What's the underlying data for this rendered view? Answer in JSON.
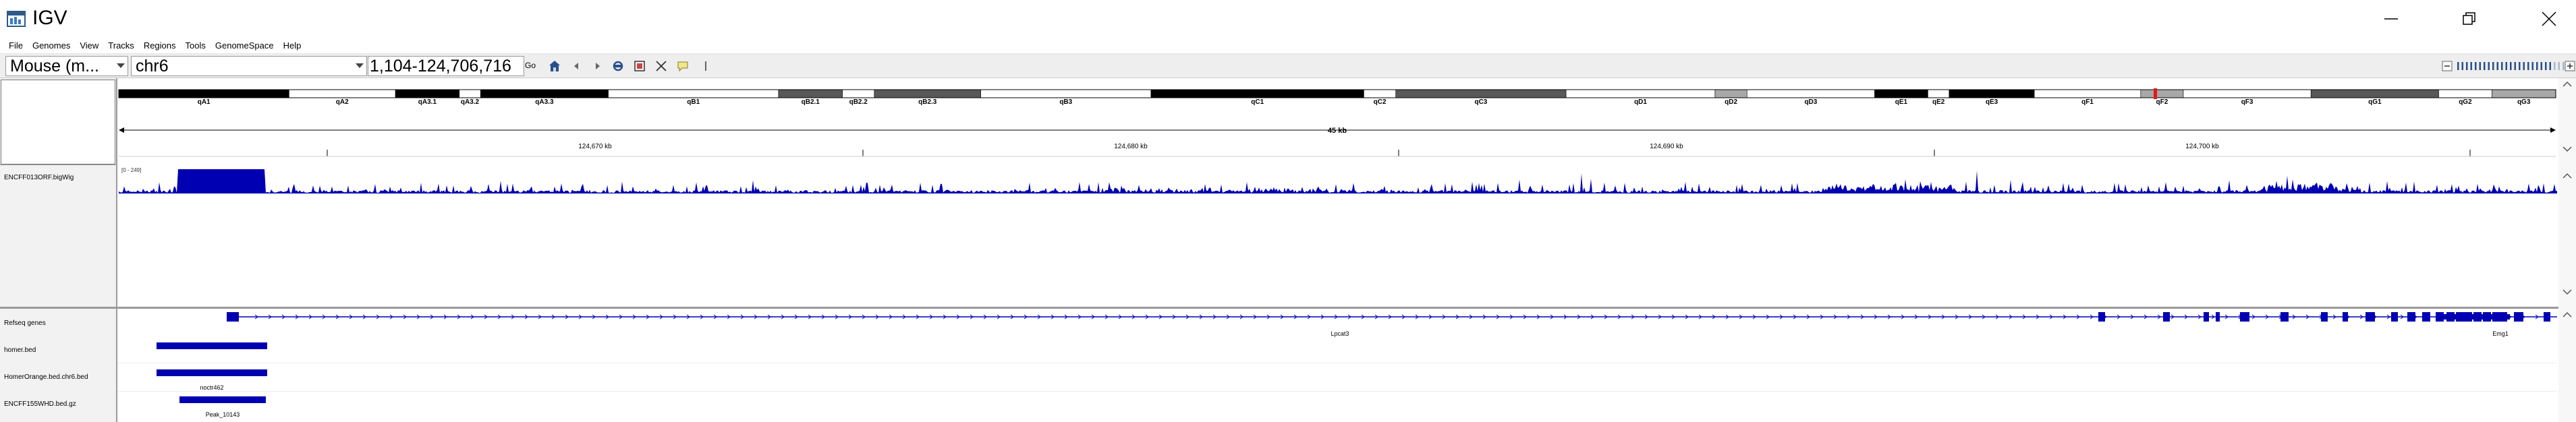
{
  "window": {
    "title": "IGV",
    "colors": {
      "accent": "#0000b2",
      "centromere": "#e21818"
    }
  },
  "menu": [
    "File",
    "Genomes",
    "View",
    "Tracks",
    "Regions",
    "Tools",
    "GenomeSpace",
    "Help"
  ],
  "toolbar": {
    "genome": "Mouse (m...",
    "chromosome": "chr6",
    "locus": "1,104-124,706,716",
    "go_label": "Go"
  },
  "ideogram": {
    "bands": [
      {
        "name": "qA1",
        "stain": "black"
      },
      {
        "name": "qA2",
        "stain": "white"
      },
      {
        "name": "qA3.1",
        "stain": "black"
      },
      {
        "name": "qA3.2",
        "stain": "white"
      },
      {
        "name": "qA3.3",
        "stain": "black"
      },
      {
        "name": "qB1",
        "stain": "white"
      },
      {
        "name": "qB2.1",
        "stain": "gray"
      },
      {
        "name": "qB2.2",
        "stain": "white"
      },
      {
        "name": "qB2.3",
        "stain": "gray"
      },
      {
        "name": "qB3",
        "stain": "white"
      },
      {
        "name": "qC1",
        "stain": "black"
      },
      {
        "name": "qC2",
        "stain": "white"
      },
      {
        "name": "qC3",
        "stain": "gray"
      },
      {
        "name": "qD1",
        "stain": "white"
      },
      {
        "name": "qD2",
        "stain": "lightgray"
      },
      {
        "name": "qD3",
        "stain": "white"
      },
      {
        "name": "qE1",
        "stain": "black"
      },
      {
        "name": "qE2",
        "stain": "white"
      },
      {
        "name": "qE3",
        "stain": "black"
      },
      {
        "name": "qF1",
        "stain": "white"
      },
      {
        "name": "qF2",
        "stain": "lightgray"
      },
      {
        "name": "qF3",
        "stain": "white"
      },
      {
        "name": "qG1",
        "stain": "gray"
      },
      {
        "name": "qG2",
        "stain": "white"
      },
      {
        "name": "qG3",
        "stain": "lightgray"
      }
    ]
  },
  "ruler": {
    "span_label": "45 kb",
    "ticks": [
      "124,670 kb",
      "124,680 kb",
      "124,690 kb",
      "124,700 kb"
    ]
  },
  "tracks": {
    "bigwig": {
      "name": "ENCFF013ORF.bigWig",
      "range": "[0 - 249]"
    },
    "refseq": {
      "name": "Refseq genes",
      "gene1": "Lpcat3",
      "gene2": "Emg1"
    },
    "homer": {
      "name": "homer.bed"
    },
    "homer_orange": {
      "name": "HomerOrange.bed.chr6.bed",
      "feature": "noctr462"
    },
    "encff": {
      "name": "ENCFF155WHD.bed.gz",
      "feature": "Peak_10143"
    }
  }
}
